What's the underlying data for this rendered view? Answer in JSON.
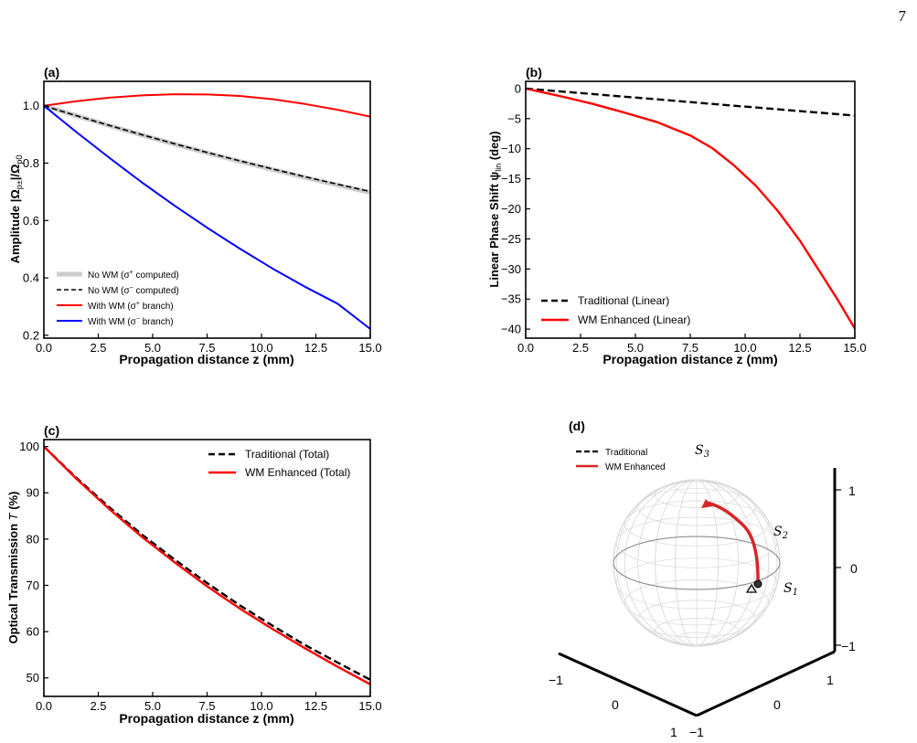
{
  "page": {
    "page_number": "7"
  },
  "chart_data": [
    {
      "panel_label": "(a)",
      "type": "line",
      "xlabel": "Propagation distance z (mm)",
      "ylabel": "Amplitude |Ω",
      "ylabel_sub1": "p±",
      "ylabel_mid": "|/Ω",
      "ylabel_sub2": "p0",
      "xlim": [
        0,
        15
      ],
      "ylim": [
        0.19,
        1.085
      ],
      "xticks": [
        0,
        2.5,
        5,
        7.5,
        10,
        12.5,
        15
      ],
      "xtick_labels": [
        "0.0",
        "2.5",
        "5.0",
        "7.5",
        "10.0",
        "12.5",
        "15.0"
      ],
      "yticks": [
        0.2,
        0.4,
        0.6,
        0.8,
        1.0
      ],
      "ytick_labels": [
        "0.2",
        "0.4",
        "0.6",
        "0.8",
        "1.0"
      ],
      "grid": false,
      "legend_position": "lower-left",
      "x": [
        0,
        1.5,
        3,
        4.5,
        6,
        7.5,
        9,
        10.5,
        12,
        13.5,
        15
      ],
      "series": [
        {
          "name": "No WM (σ⁺ computed)",
          "legend_main": "No WM (σ",
          "legend_sup": "+",
          "legend_tail": " computed)",
          "color": "#cccccc",
          "style": "solid",
          "width": 5,
          "values": [
            1.0,
            0.9649,
            0.9309,
            0.8981,
            0.8663,
            0.8357,
            0.806,
            0.7775,
            0.7499,
            0.7234,
            0.6978
          ]
        },
        {
          "name": "No WM (σ⁻ computed)",
          "legend_main": "No WM (σ",
          "legend_sup": "−",
          "legend_tail": " computed)",
          "color": "#000000",
          "style": "dashed",
          "width": 1.6,
          "values": [
            1.0,
            0.9651,
            0.9314,
            0.8989,
            0.8675,
            0.8372,
            0.808,
            0.7798,
            0.7526,
            0.7263,
            0.701
          ]
        },
        {
          "name": "With WM (σ⁺ branch)",
          "legend_main": "With WM (σ",
          "legend_sup": "+",
          "legend_tail": " branch)",
          "color": "#ff0000",
          "style": "solid",
          "width": 2,
          "values": [
            1.0,
            1.0155,
            1.028,
            1.036,
            1.04,
            1.039,
            1.034,
            1.023,
            1.006,
            0.986,
            0.962
          ]
        },
        {
          "name": "With WM (σ⁻ branch)",
          "legend_main": "With WM (σ",
          "legend_sup": "−",
          "legend_tail": " branch)",
          "color": "#0000ff",
          "style": "solid",
          "width": 2,
          "values": [
            1.0,
            0.908,
            0.819,
            0.733,
            0.652,
            0.575,
            0.502,
            0.433,
            0.369,
            0.31,
            0.222
          ]
        }
      ]
    },
    {
      "panel_label": "(b)",
      "type": "line",
      "xlabel": "Propagation distance z (mm)",
      "ylabel": "Linear Phase Shift ψ",
      "ylabel_sub1": "lin",
      "ylabel_tail": " (deg)",
      "xlim": [
        0,
        15
      ],
      "ylim": [
        -41.5,
        1.2
      ],
      "xticks": [
        0,
        2.5,
        5,
        7.5,
        10,
        12.5,
        15
      ],
      "xtick_labels": [
        "0.0",
        "2.5",
        "5.0",
        "7.5",
        "10.0",
        "12.5",
        "15.0"
      ],
      "yticks": [
        0,
        -5,
        -10,
        -15,
        -20,
        -25,
        -30,
        -35,
        -40
      ],
      "ytick_labels": [
        "0",
        "−5",
        "−10",
        "−15",
        "−20",
        "−25",
        "−30",
        "−35",
        "−40"
      ],
      "grid": false,
      "legend_position": "lower-left",
      "x": [
        0,
        1.5,
        3,
        4.5,
        6,
        7.5,
        8.5,
        9.5,
        10.5,
        11.5,
        12.5,
        13.5,
        14.25,
        15
      ],
      "series": [
        {
          "name": "Traditional (Linear)",
          "color": "#000000",
          "style": "dashed",
          "width": 2.4,
          "values": [
            0,
            -0.45,
            -0.9,
            -1.35,
            -1.8,
            -2.25,
            -2.55,
            -2.85,
            -3.15,
            -3.45,
            -3.75,
            -4.05,
            -4.27,
            -4.5
          ]
        },
        {
          "name": "WM Enhanced (Linear)",
          "color": "#ff0000",
          "style": "solid",
          "width": 2.4,
          "values": [
            0,
            -1.2,
            -2.5,
            -4.0,
            -5.6,
            -7.8,
            -9.9,
            -12.8,
            -16.2,
            -20.4,
            -25.3,
            -31.0,
            -35.3,
            -39.9
          ]
        }
      ]
    },
    {
      "panel_label": "(c)",
      "type": "line",
      "xlabel": "Propagation distance z (mm)",
      "ylabel": "Optical Transmission ",
      "ylabel_italic": "T",
      "ylabel_tail": " (%)",
      "xlim": [
        0,
        15
      ],
      "ylim": [
        46,
        101.5
      ],
      "xticks": [
        0,
        2.5,
        5,
        7.5,
        10,
        12.5,
        15
      ],
      "xtick_labels": [
        "0.0",
        "2.5",
        "5.0",
        "7.5",
        "10.0",
        "12.5",
        "15.0"
      ],
      "yticks": [
        50,
        60,
        70,
        80,
        90,
        100
      ],
      "ytick_labels": [
        "50",
        "60",
        "70",
        "80",
        "90",
        "100"
      ],
      "grid": false,
      "legend_position": "top-right",
      "x": [
        0,
        1.5,
        3,
        4.5,
        6,
        7.5,
        9,
        10.5,
        12,
        13.5,
        15
      ],
      "series": [
        {
          "name": "Traditional (Total)",
          "color": "#000000",
          "style": "dashed",
          "width": 2.4,
          "values": [
            100,
            93.2,
            86.9,
            81.0,
            75.6,
            70.5,
            65.7,
            61.3,
            57.1,
            53.3,
            49.6
          ]
        },
        {
          "name": "WM Enhanced (Total)",
          "color": "#ff0000",
          "style": "solid",
          "width": 2.4,
          "values": [
            100,
            93.0,
            86.5,
            80.5,
            75.0,
            69.8,
            65.0,
            60.6,
            56.4,
            52.4,
            48.6
          ]
        }
      ]
    },
    {
      "panel_label": "(d)",
      "type": "3d-poincare-sphere",
      "axis_labels": {
        "s1": "S",
        "s1_sub": "1",
        "s2": "S",
        "s2_sub": "2",
        "s3": "S",
        "s3_sub": "3"
      },
      "tick_labels": {
        "vertical": [
          "1",
          "0",
          "−1"
        ],
        "left_axis": [
          "−1",
          "0",
          "1"
        ],
        "right_axis": [
          "−1",
          "0",
          "1"
        ]
      },
      "legend_position": "top-left",
      "legend": [
        {
          "name": "Traditional",
          "color": "#000000",
          "style": "dashed"
        },
        {
          "name": "WM Enhanced",
          "color": "#d62728",
          "style": "solid"
        }
      ],
      "trajectory_start": "near S1 (equator)",
      "trajectory_end": "upper hemisphere toward S3"
    }
  ]
}
